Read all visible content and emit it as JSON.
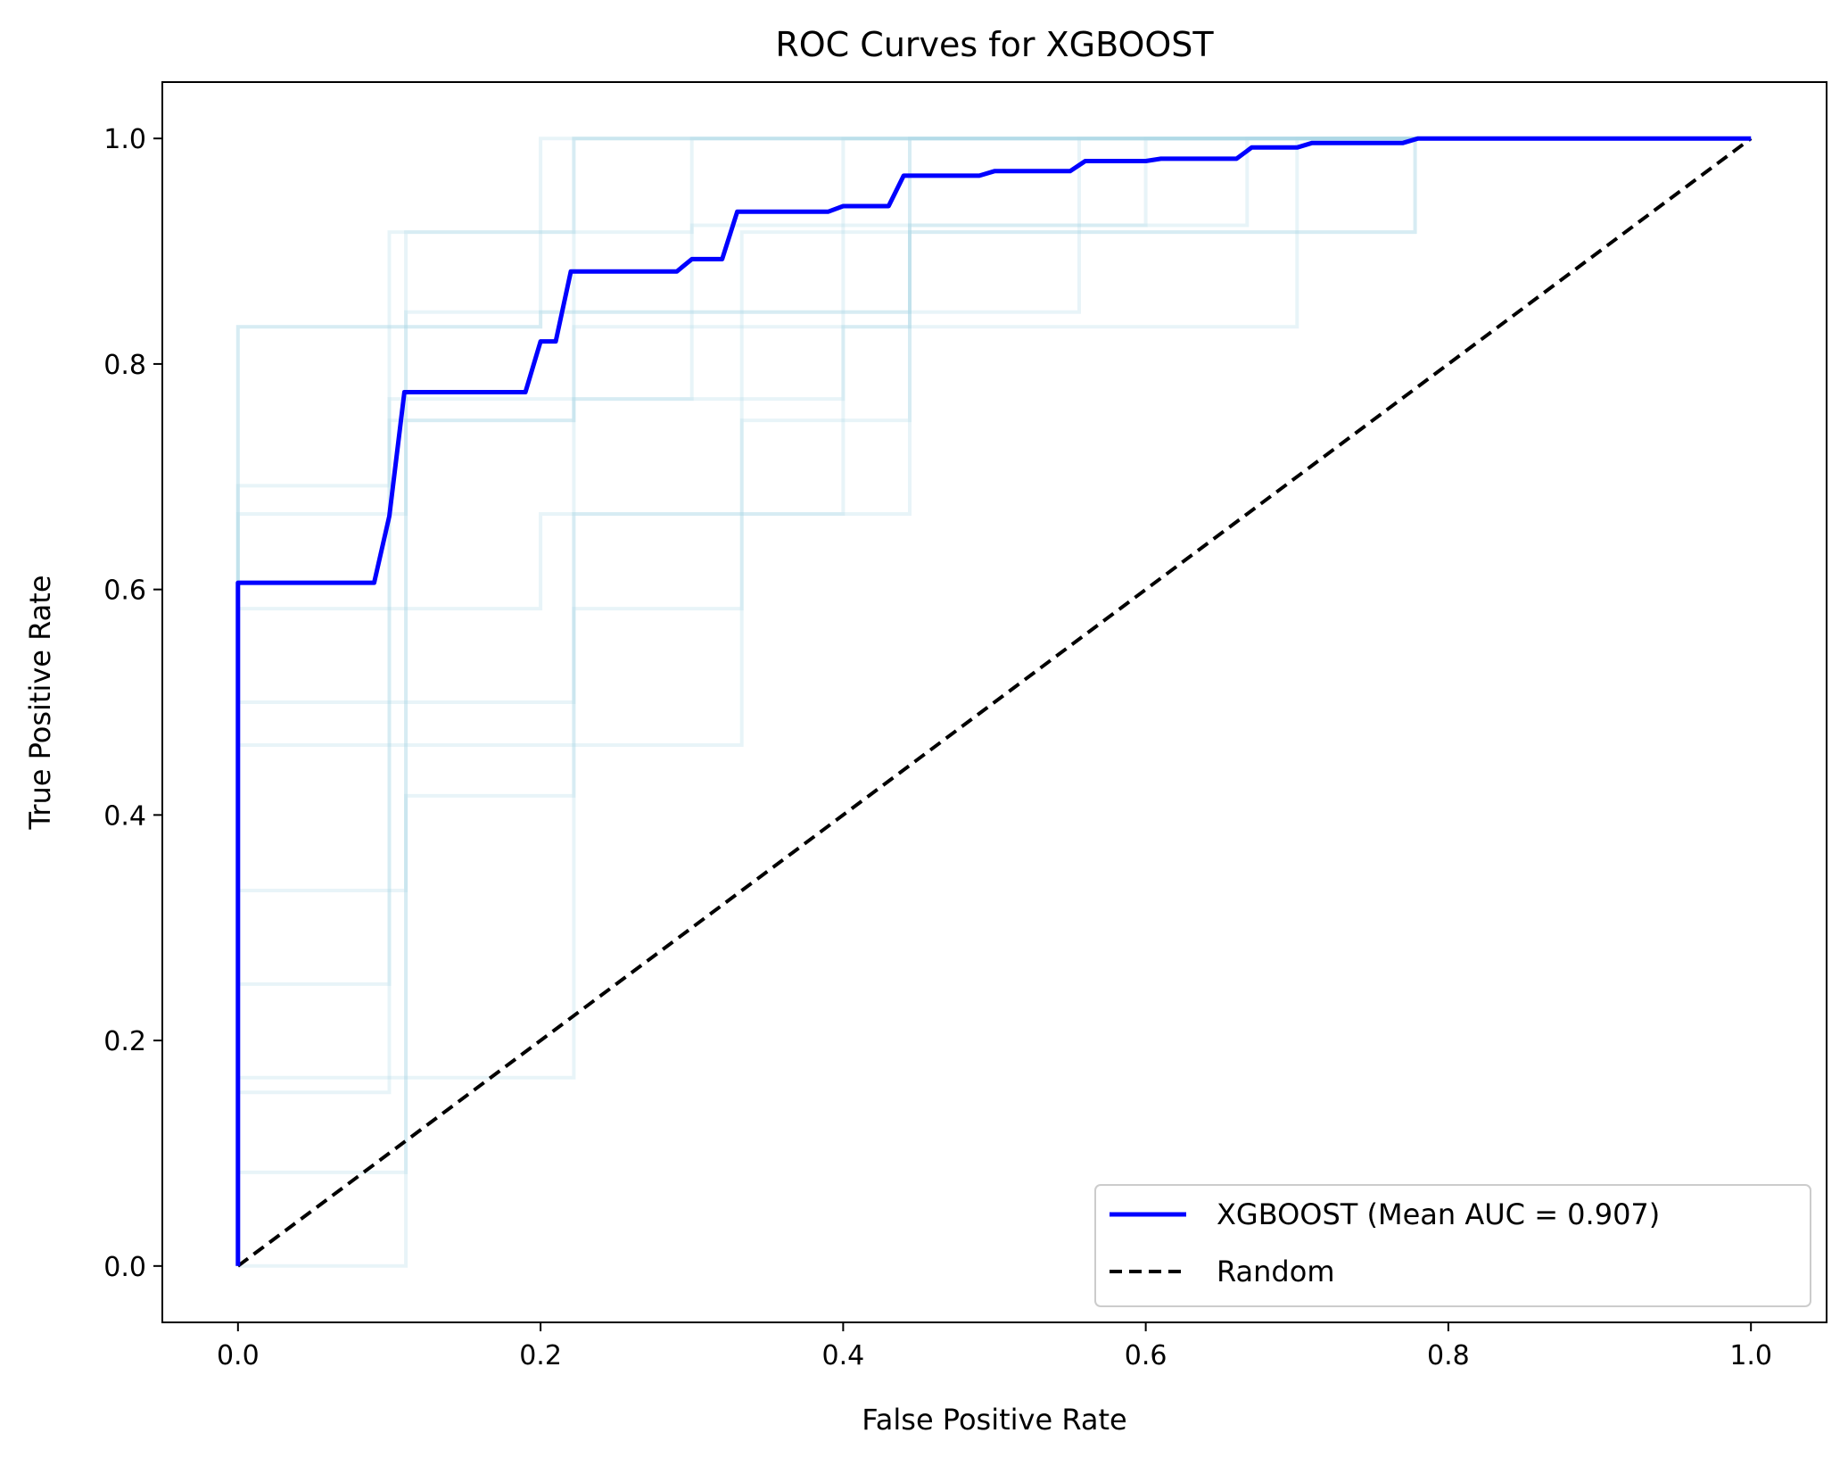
{
  "chart_data": {
    "type": "line",
    "title": "ROC Curves for XGBOOST",
    "xlabel": "False Positive Rate",
    "ylabel": "True Positive Rate",
    "xlim": [
      -0.05,
      1.05
    ],
    "ylim": [
      -0.05,
      1.05
    ],
    "xticks": [
      "0.0",
      "0.2",
      "0.4",
      "0.6",
      "0.8",
      "1.0"
    ],
    "yticks": [
      "0.0",
      "0.2",
      "0.4",
      "0.6",
      "0.8",
      "1.0"
    ],
    "xtick_values": [
      0,
      0.2,
      0.4,
      0.6,
      0.8,
      1.0
    ],
    "ytick_values": [
      0,
      0.2,
      0.4,
      0.6,
      0.8,
      1.0
    ],
    "grid": false,
    "legend_position": "bottom-right",
    "series": [
      {
        "name": "XGBOOST (Mean AUC = 0.907)",
        "color": "#0000ff",
        "style": "solid",
        "x": [
          0,
          0,
          0.09,
          0.1,
          0.11,
          0.19,
          0.2,
          0.21,
          0.22,
          0.29,
          0.3,
          0.32,
          0.33,
          0.39,
          0.4,
          0.43,
          0.44,
          0.49,
          0.5,
          0.55,
          0.56,
          0.6,
          0.61,
          0.66,
          0.67,
          0.7,
          0.71,
          0.77,
          0.78,
          1.0
        ],
        "y": [
          0,
          0.606,
          0.606,
          0.665,
          0.775,
          0.775,
          0.82,
          0.82,
          0.882,
          0.882,
          0.893,
          0.893,
          0.935,
          0.935,
          0.94,
          0.94,
          0.967,
          0.967,
          0.971,
          0.971,
          0.98,
          0.98,
          0.982,
          0.982,
          0.992,
          0.992,
          0.996,
          0.996,
          1.0,
          1.0
        ]
      },
      {
        "name": "Random",
        "color": "#000000",
        "style": "dashed",
        "x": [
          0,
          1
        ],
        "y": [
          0,
          1
        ]
      }
    ],
    "fold_curves": {
      "color": "#add8e6",
      "curves": [
        {
          "x": [
            0,
            0,
            0.111,
            0.111,
            0.222,
            0.222,
            0.444,
            0.444,
            0.778,
            0.778,
            1.0
          ],
          "y": [
            0,
            0.667,
            0.667,
            0.75,
            0.75,
            0.833,
            0.833,
            0.917,
            0.917,
            1.0,
            1.0
          ]
        },
        {
          "x": [
            0,
            0,
            0.1,
            0.1,
            0.2,
            0.2,
            0.3,
            0.3,
            1.0
          ],
          "y": [
            0,
            0.25,
            0.25,
            0.833,
            0.833,
            0.917,
            0.917,
            1.0,
            1.0
          ]
        },
        {
          "x": [
            0,
            0,
            0.222,
            0.222,
            0.333,
            0.333,
            0.444,
            0.444,
            1.0
          ],
          "y": [
            0,
            0.5,
            0.5,
            0.583,
            0.583,
            0.75,
            0.75,
            1.0,
            1.0
          ]
        },
        {
          "x": [
            0,
            0,
            0.111,
            0.111,
            0.222,
            0.222,
            1.0
          ],
          "y": [
            0,
            0.333,
            0.333,
            0.917,
            0.917,
            1.0,
            1.0
          ]
        },
        {
          "x": [
            0,
            0,
            0.333,
            0.333,
            0.444,
            0.444,
            0.667,
            0.667,
            1.0
          ],
          "y": [
            0,
            0.462,
            0.462,
            0.846,
            0.846,
            0.923,
            0.923,
            1.0,
            1.0
          ]
        },
        {
          "x": [
            0,
            0,
            0.2,
            0.2,
            0.4,
            0.4,
            0.7,
            0.7,
            1.0
          ],
          "y": [
            0,
            0.583,
            0.583,
            0.667,
            0.667,
            0.833,
            0.833,
            1.0,
            1.0
          ]
        },
        {
          "x": [
            0,
            0,
            0.222,
            0.222,
            0.444,
            0.444,
            1.0
          ],
          "y": [
            0,
            0.167,
            0.167,
            0.667,
            0.667,
            1.0,
            1.0
          ]
        },
        {
          "x": [
            0,
            0,
            0.1,
            0.1,
            0.2,
            0.2,
            0.5,
            0.5,
            1.0
          ],
          "y": [
            0,
            0.833,
            0.833,
            0.917,
            0.917,
            1.0,
            1.0,
            1.0,
            1.0
          ]
        },
        {
          "x": [
            0,
            0,
            0.111,
            0.111,
            0.556,
            0.556,
            1.0
          ],
          "y": [
            0,
            0.083,
            0.083,
            0.846,
            0.846,
            1.0,
            1.0
          ]
        },
        {
          "x": [
            0,
            0,
            0.1,
            0.1,
            0.3,
            0.3,
            0.6,
            0.6,
            1.0
          ],
          "y": [
            0,
            0.692,
            0.692,
            0.769,
            0.769,
            0.923,
            0.923,
            1.0,
            1.0
          ]
        },
        {
          "x": [
            0,
            0,
            0.111,
            0.111,
            0.222,
            0.222,
            1.0
          ],
          "y": [
            0,
            0.0,
            0.0,
            0.417,
            0.417,
            1.0,
            1.0
          ]
        },
        {
          "x": [
            0,
            0,
            0.2,
            0.2,
            0.333,
            0.333,
            0.778,
            0.778,
            1.0
          ],
          "y": [
            0,
            0.833,
            0.833,
            0.846,
            0.846,
            0.917,
            0.917,
            1.0,
            1.0
          ]
        },
        {
          "x": [
            0,
            0,
            0.1,
            0.1,
            0.222,
            0.222,
            0.4,
            0.4,
            1.0
          ],
          "y": [
            0,
            0.154,
            0.154,
            0.75,
            0.75,
            0.769,
            0.769,
            1.0,
            1.0
          ]
        }
      ]
    }
  }
}
